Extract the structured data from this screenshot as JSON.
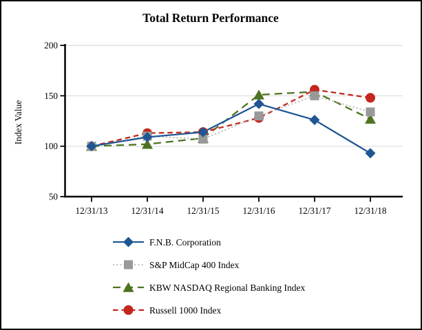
{
  "frame": {
    "background": "#ffffff",
    "border_color": "#000000"
  },
  "chart_data": {
    "type": "line",
    "title": "Total Return Performance",
    "xlabel": "",
    "ylabel": "Index Value",
    "categories": [
      "12/31/13",
      "12/31/14",
      "12/31/15",
      "12/31/16",
      "12/31/17",
      "12/31/18"
    ],
    "series": [
      {
        "name": "F.N.B. Corporation",
        "marker": "diamond",
        "line_style": "solid",
        "color": "#1F5693",
        "values": [
          100,
          109,
          114,
          142,
          126,
          93
        ]
      },
      {
        "name": "S&P MidCap 400 Index",
        "marker": "square",
        "line_style": "dotted",
        "color": "#999999",
        "line_color": "#ABABAB",
        "values": [
          100,
          110,
          107,
          130,
          150,
          134
        ]
      },
      {
        "name": "KBW NASDAQ Regional Banking Index",
        "marker": "triangle",
        "line_style": "long-dash",
        "color": "#4E7320",
        "values": [
          100,
          102,
          108,
          151,
          154,
          127
        ]
      },
      {
        "name": "Russell 1000 Index",
        "marker": "circle",
        "line_style": "dash",
        "color": "#C3271D",
        "values": [
          100,
          113,
          114,
          128,
          156,
          148
        ]
      }
    ],
    "yticks": [
      50,
      100,
      150,
      200
    ],
    "ylim": [
      50,
      200
    ],
    "grid": true,
    "gridline_color": "#DCDCDC",
    "legend_position": "bottom-left"
  }
}
